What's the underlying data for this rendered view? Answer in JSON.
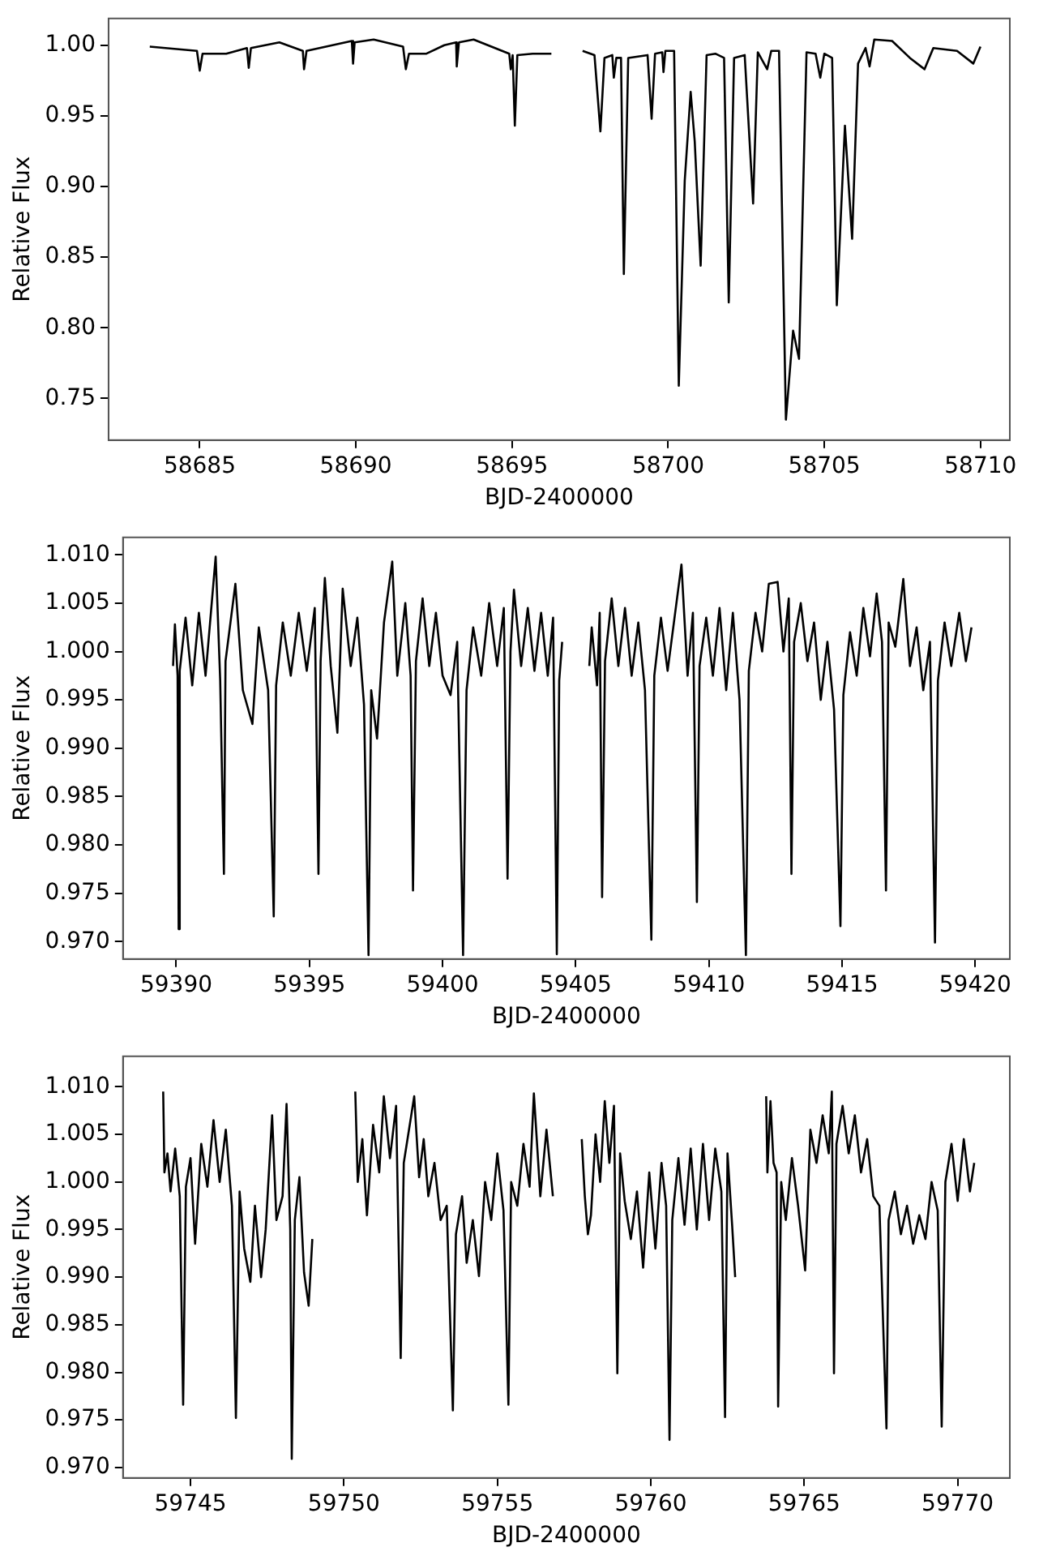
{
  "chart_data": [
    {
      "type": "line",
      "xlabel": "BJD-2400000",
      "ylabel": "Relative Flux",
      "xlim": [
        58682.08,
        58710.94
      ],
      "ylim": [
        0.7205,
        1.0189
      ],
      "xticks": [
        58685,
        58690,
        58695,
        58700,
        58705,
        58710
      ],
      "yticks": [
        0.75,
        {
          "value": 0.8,
          "label": "0.80"
        },
        0.85,
        {
          "value": 0.9,
          "label": "0.90"
        },
        0.95,
        {
          "value": 1.0,
          "label": "1.00"
        }
      ],
      "x": [
        58683.4,
        58684.91,
        58685.0,
        58685.09,
        58685.85,
        58686.51,
        58686.57,
        58686.64,
        58687.55,
        58688.3,
        58688.34,
        58688.42,
        58689.25,
        58689.87,
        58689.91,
        58689.96,
        58690.57,
        58691.51,
        58691.6,
        58691.7,
        58692.26,
        58692.83,
        58693.21,
        58693.23,
        58693.3,
        58693.77,
        58694.34,
        58694.91,
        58694.96,
        58695.02,
        58695.09,
        58695.17,
        58695.66,
        58696.26,
        58697.0,
        58697.26,
        58697.64,
        58697.83,
        58697.96,
        58698.21,
        58698.26,
        58698.34,
        58698.49,
        58698.58,
        58698.72,
        58699.34,
        58699.47,
        58699.58,
        58699.81,
        58699.85,
        58699.91,
        58700.19,
        58700.34,
        58700.53,
        58700.72,
        58700.85,
        58701.04,
        58701.23,
        58701.51,
        58701.79,
        58701.94,
        58702.11,
        58702.45,
        58702.72,
        58702.87,
        58703.17,
        58703.3,
        58703.55,
        58703.77,
        58704.0,
        58704.19,
        58704.43,
        58704.72,
        58704.87,
        58705.0,
        58705.25,
        58705.4,
        58705.66,
        58705.89,
        58706.08,
        58706.32,
        58706.45,
        58706.6,
        58707.17,
        58707.74,
        58708.21,
        58708.49,
        58709.25,
        58709.77,
        58710.0
      ],
      "series": [
        {
          "color": "#000000",
          "values": [
            0.999,
            0.996,
            0.982,
            0.994,
            0.994,
            0.998,
            0.984,
            0.998,
            1.002,
            0.996,
            0.983,
            0.996,
            1.0,
            1.003,
            0.987,
            1.002,
            1.004,
            0.999,
            0.983,
            0.994,
            0.994,
            1.0,
            1.002,
            0.985,
            1.002,
            1.004,
            0.999,
            0.994,
            0.983,
            0.993,
            0.943,
            0.993,
            0.994,
            0.994,
            null,
            0.996,
            0.993,
            0.939,
            0.991,
            0.993,
            0.977,
            0.991,
            0.991,
            0.838,
            0.991,
            0.993,
            0.948,
            0.994,
            0.995,
            0.981,
            0.996,
            0.996,
            0.759,
            0.904,
            0.967,
            0.932,
            0.844,
            0.993,
            0.994,
            0.991,
            0.818,
            0.991,
            0.993,
            0.888,
            0.995,
            0.983,
            0.996,
            0.996,
            0.735,
            0.798,
            0.778,
            0.995,
            0.994,
            0.977,
            0.994,
            0.991,
            0.816,
            0.943,
            0.863,
            0.987,
            0.998,
            0.985,
            1.004,
            1.003,
            0.991,
            0.983,
            0.998,
            0.996,
            0.987,
            0.999
          ]
        }
      ]
    },
    {
      "type": "line",
      "xlabel": "BJD-2400000",
      "ylabel": "Relative Flux",
      "xlim": [
        59388.0,
        59421.3
      ],
      "ylim": [
        0.9682,
        1.0118
      ],
      "xticks": [
        59390,
        59395,
        59400,
        59405,
        59410,
        59415,
        59420
      ],
      "yticks": [
        {
          "value": 0.97,
          "label": "0.970"
        },
        0.975,
        {
          "value": 0.98,
          "label": "0.980"
        },
        0.985,
        {
          "value": 0.99,
          "label": "0.990"
        },
        0.995,
        {
          "value": 1.0,
          "label": "1.000"
        },
        1.005,
        {
          "value": 1.01,
          "label": "1.010"
        }
      ],
      "x": [
        59389.88,
        59389.95,
        59390.05,
        59390.09,
        59390.13,
        59390.35,
        59390.6,
        59390.85,
        59391.1,
        59391.48,
        59391.65,
        59391.79,
        59391.85,
        59392.22,
        59392.5,
        59392.86,
        59393.1,
        59393.45,
        59393.66,
        59393.75,
        59394.0,
        59394.3,
        59394.6,
        59394.9,
        59395.2,
        59395.34,
        59395.42,
        59395.58,
        59395.8,
        59396.05,
        59396.25,
        59396.55,
        59396.8,
        59397.05,
        59397.22,
        59397.32,
        59397.54,
        59397.8,
        59398.11,
        59398.3,
        59398.6,
        59398.8,
        59398.89,
        59399.0,
        59399.25,
        59399.5,
        59399.75,
        59400.0,
        59400.3,
        59400.55,
        59400.77,
        59400.9,
        59401.15,
        59401.45,
        59401.75,
        59402.05,
        59402.3,
        59402.44,
        59402.55,
        59402.68,
        59402.95,
        59403.2,
        59403.45,
        59403.7,
        59403.95,
        59404.15,
        59404.29,
        59404.38,
        59404.49,
        59405.0,
        59405.51,
        59405.6,
        59405.8,
        59405.9,
        59405.99,
        59406.1,
        59406.35,
        59406.6,
        59406.85,
        59407.1,
        59407.35,
        59407.6,
        59407.84,
        59407.95,
        59408.2,
        59408.45,
        59408.97,
        59409.2,
        59409.4,
        59409.55,
        59409.65,
        59409.9,
        59410.15,
        59410.4,
        59410.65,
        59410.9,
        59411.15,
        59411.39,
        59411.5,
        59411.75,
        59412.0,
        59412.25,
        59412.58,
        59412.8,
        59413.0,
        59413.1,
        59413.2,
        59413.45,
        59413.7,
        59413.95,
        59414.2,
        59414.45,
        59414.7,
        59414.94,
        59415.05,
        59415.3,
        59415.55,
        59415.8,
        59416.05,
        59416.3,
        59416.5,
        59416.65,
        59416.75,
        59417.0,
        59417.3,
        59417.55,
        59417.8,
        59418.05,
        59418.3,
        59418.49,
        59418.6,
        59418.85,
        59419.1,
        59419.4,
        59419.65,
        59419.86
      ],
      "series": [
        {
          "color": "#000000",
          "values": [
            0.9985,
            1.0028,
            0.9975,
            0.9713,
            0.998,
            1.0035,
            0.9965,
            1.004,
            0.9975,
            1.0098,
            0.997,
            0.977,
            0.999,
            1.007,
            0.996,
            0.9925,
            1.0025,
            0.996,
            0.9726,
            0.9965,
            1.003,
            0.9975,
            1.004,
            0.998,
            1.0045,
            0.977,
            0.999,
            1.0076,
            0.9985,
            0.9916,
            1.0065,
            0.9985,
            1.0035,
            0.9945,
            0.9686,
            0.996,
            0.991,
            1.003,
            1.0093,
            0.9975,
            1.005,
            0.9975,
            0.9753,
            0.999,
            1.0055,
            0.9985,
            1.004,
            0.9975,
            0.9955,
            1.001,
            0.9686,
            0.996,
            1.0025,
            0.9975,
            1.005,
            0.9985,
            1.0045,
            0.9765,
            1.0,
            1.0064,
            0.9985,
            1.0045,
            0.998,
            1.004,
            0.9975,
            1.0035,
            0.9687,
            0.997,
            1.001,
            null,
            0.9985,
            1.0025,
            0.9965,
            1.004,
            0.9746,
            0.999,
            1.0055,
            0.9985,
            1.0045,
            0.9975,
            1.003,
            0.996,
            0.9702,
            0.9975,
            1.0035,
            0.998,
            1.009,
            0.9975,
            1.004,
            0.9741,
            0.9985,
            1.0035,
            0.9975,
            1.0045,
            0.996,
            1.004,
            0.995,
            0.9686,
            0.998,
            1.004,
            1.0,
            1.007,
            1.0072,
            1.0,
            1.0055,
            0.977,
            1.001,
            1.005,
            0.999,
            1.003,
            0.995,
            1.001,
            0.994,
            0.9716,
            0.9955,
            1.002,
            0.9975,
            1.0045,
            0.9995,
            1.006,
            1.001,
            0.9753,
            1.003,
            1.0005,
            1.0075,
            0.9985,
            1.0025,
            0.996,
            1.001,
            0.9699,
            0.997,
            1.003,
            0.9985,
            1.004,
            0.999,
            1.0025
          ]
        }
      ]
    },
    {
      "type": "line",
      "xlabel": "BJD-2400000",
      "ylabel": "Relative Flux",
      "xlim": [
        59742.8,
        59771.7
      ],
      "ylim": [
        0.9689,
        1.0132
      ],
      "xticks": [
        59745,
        59750,
        59755,
        59760,
        59765,
        59770
      ],
      "yticks": [
        {
          "value": 0.97,
          "label": "0.970"
        },
        0.975,
        {
          "value": 0.98,
          "label": "0.980"
        },
        0.985,
        {
          "value": 0.99,
          "label": "0.990"
        },
        0.995,
        {
          "value": 1.0,
          "label": "1.000"
        },
        1.005,
        {
          "value": 1.01,
          "label": "1.010"
        }
      ],
      "x": [
        59744.11,
        59744.15,
        59744.25,
        59744.35,
        59744.5,
        59744.65,
        59744.76,
        59744.85,
        59745.0,
        59745.15,
        59745.35,
        59745.55,
        59745.75,
        59745.95,
        59746.15,
        59746.35,
        59746.48,
        59746.6,
        59746.75,
        59746.95,
        59747.1,
        59747.3,
        59747.45,
        59747.66,
        59747.8,
        59748.0,
        59748.13,
        59748.25,
        59748.3,
        59748.4,
        59748.55,
        59748.7,
        59748.85,
        59748.97,
        59749.6,
        59750.37,
        59750.45,
        59750.6,
        59750.75,
        59750.95,
        59751.15,
        59751.3,
        59751.5,
        59751.7,
        59751.85,
        59751.95,
        59752.29,
        59752.45,
        59752.6,
        59752.75,
        59752.95,
        59753.15,
        59753.35,
        59753.55,
        59753.65,
        59753.85,
        59754.0,
        59754.2,
        59754.4,
        59754.6,
        59754.8,
        59755.0,
        59755.2,
        59755.36,
        59755.45,
        59755.65,
        59755.85,
        59756.05,
        59756.19,
        59756.4,
        59756.6,
        59756.81,
        59757.3,
        59757.75,
        59757.85,
        59757.95,
        59758.05,
        59758.2,
        59758.35,
        59758.5,
        59758.65,
        59758.8,
        59758.91,
        59759.0,
        59759.15,
        59759.35,
        59759.55,
        59759.75,
        59759.95,
        59760.15,
        59760.35,
        59760.5,
        59760.61,
        59760.7,
        59760.9,
        59761.1,
        59761.3,
        59761.5,
        59761.7,
        59761.9,
        59762.1,
        59762.3,
        59762.42,
        59762.5,
        59762.65,
        59762.75,
        59763.2,
        59763.76,
        59763.8,
        59763.9,
        59764.0,
        59764.1,
        59764.15,
        59764.25,
        59764.4,
        59764.6,
        59764.8,
        59765.03,
        59765.2,
        59765.4,
        59765.6,
        59765.8,
        59765.9,
        59765.97,
        59766.05,
        59766.25,
        59766.45,
        59766.65,
        59766.85,
        59767.05,
        59767.25,
        59767.45,
        59767.68,
        59767.75,
        59767.95,
        59768.15,
        59768.35,
        59768.55,
        59768.75,
        59768.95,
        59769.15,
        59769.35,
        59769.48,
        59769.6,
        59769.8,
        59770.0,
        59770.2,
        59770.4,
        59770.54
      ],
      "series": [
        {
          "color": "#000000",
          "values": [
            1.0095,
            1.001,
            1.003,
            0.999,
            1.0035,
            0.9985,
            0.9766,
            0.9995,
            1.0025,
            0.9935,
            1.004,
            0.9995,
            1.0065,
            1.0,
            1.0055,
            0.9975,
            0.9752,
            0.999,
            0.993,
            0.9895,
            0.9975,
            0.99,
            0.995,
            1.007,
            0.996,
            0.9985,
            1.0082,
            0.995,
            0.9709,
            0.996,
            1.0005,
            0.9905,
            0.987,
            0.994,
            null,
            1.0095,
            1.0,
            1.0045,
            0.9965,
            1.006,
            1.001,
            1.009,
            1.0025,
            1.008,
            0.9815,
            1.002,
            1.009,
            1.0005,
            1.0045,
            0.9985,
            1.002,
            0.996,
            0.9975,
            0.976,
            0.9945,
            0.9985,
            0.9915,
            0.996,
            0.9901,
            1.0,
            0.996,
            1.003,
            0.997,
            0.9766,
            1.0,
            0.9975,
            1.004,
            0.9995,
            1.0093,
            0.9985,
            1.0055,
            0.9985,
            null,
            1.0045,
            0.9985,
            0.9945,
            0.9965,
            1.005,
            1.0,
            1.0085,
            1.002,
            1.008,
            0.9799,
            1.003,
            0.998,
            0.994,
            0.999,
            0.991,
            1.001,
            0.993,
            1.002,
            0.9975,
            0.9729,
            0.996,
            1.0025,
            0.9955,
            1.0035,
            0.995,
            1.004,
            0.996,
            1.0035,
            0.999,
            0.9753,
            1.003,
            0.9955,
            0.99,
            null,
            1.009,
            1.001,
            1.0085,
            1.002,
            1.001,
            0.9764,
            1.0,
            0.996,
            1.0025,
            0.9975,
            0.9907,
            1.0055,
            1.002,
            1.007,
            1.003,
            1.0095,
            0.9799,
            1.004,
            1.008,
            1.003,
            1.007,
            1.001,
            1.0045,
            0.9985,
            0.9975,
            0.9741,
            0.996,
            0.999,
            0.9945,
            0.9975,
            0.9935,
            0.9965,
            0.994,
            1.0,
            0.997,
            0.9743,
            1.0,
            1.004,
            0.998,
            1.0045,
            0.999,
            1.002
          ]
        }
      ]
    }
  ]
}
